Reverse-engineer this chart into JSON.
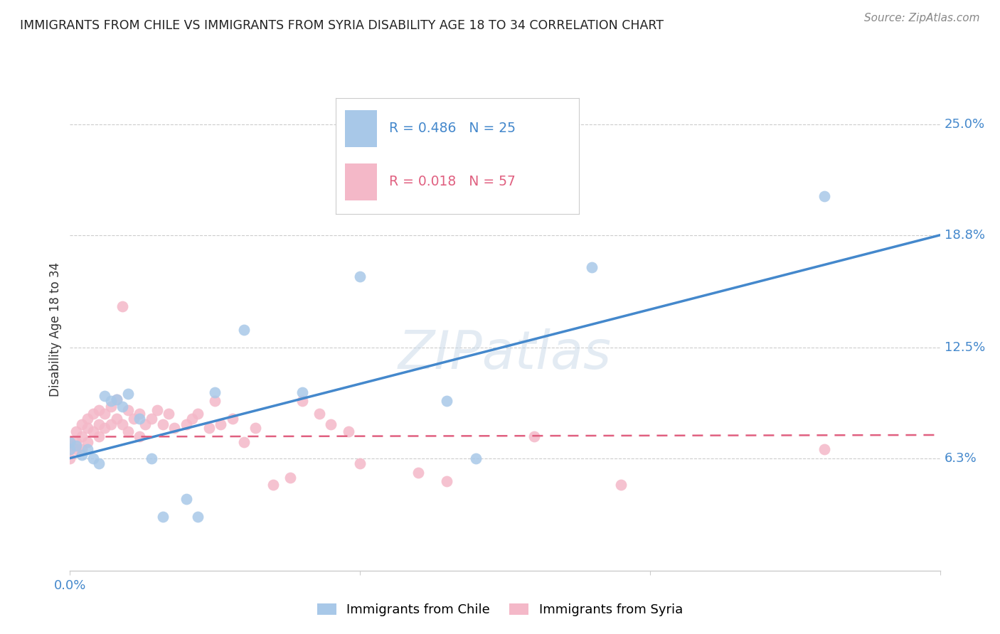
{
  "title": "IMMIGRANTS FROM CHILE VS IMMIGRANTS FROM SYRIA DISABILITY AGE 18 TO 34 CORRELATION CHART",
  "source": "Source: ZipAtlas.com",
  "ylabel": "Disability Age 18 to 34",
  "ytick_labels": [
    "6.3%",
    "12.5%",
    "18.8%",
    "25.0%"
  ],
  "ytick_values": [
    0.063,
    0.125,
    0.188,
    0.25
  ],
  "xlim": [
    0.0,
    0.15
  ],
  "ylim": [
    0.0,
    0.27
  ],
  "chile_color": "#a8c8e8",
  "syria_color": "#f4b8c8",
  "chile_line_color": "#4488cc",
  "syria_line_color": "#e06080",
  "chile_R": 0.486,
  "chile_N": 25,
  "syria_R": 0.018,
  "syria_N": 57,
  "watermark": "ZIPatlas",
  "chile_points_x": [
    0.0,
    0.0,
    0.001,
    0.002,
    0.003,
    0.004,
    0.005,
    0.006,
    0.007,
    0.008,
    0.009,
    0.01,
    0.012,
    0.014,
    0.016,
    0.02,
    0.022,
    0.025,
    0.03,
    0.04,
    0.05,
    0.065,
    0.07,
    0.09,
    0.13
  ],
  "chile_points_y": [
    0.072,
    0.068,
    0.07,
    0.065,
    0.068,
    0.063,
    0.06,
    0.098,
    0.095,
    0.096,
    0.092,
    0.099,
    0.085,
    0.063,
    0.03,
    0.04,
    0.03,
    0.1,
    0.135,
    0.1,
    0.165,
    0.095,
    0.063,
    0.17,
    0.21
  ],
  "syria_points_x": [
    0.0,
    0.0,
    0.0,
    0.001,
    0.001,
    0.001,
    0.002,
    0.002,
    0.002,
    0.003,
    0.003,
    0.003,
    0.004,
    0.004,
    0.005,
    0.005,
    0.005,
    0.006,
    0.006,
    0.007,
    0.007,
    0.008,
    0.008,
    0.009,
    0.009,
    0.01,
    0.01,
    0.011,
    0.012,
    0.012,
    0.013,
    0.014,
    0.015,
    0.016,
    0.017,
    0.018,
    0.02,
    0.021,
    0.022,
    0.024,
    0.025,
    0.026,
    0.028,
    0.03,
    0.032,
    0.035,
    0.038,
    0.04,
    0.043,
    0.045,
    0.048,
    0.05,
    0.06,
    0.065,
    0.08,
    0.095,
    0.13
  ],
  "syria_points_y": [
    0.072,
    0.068,
    0.063,
    0.078,
    0.072,
    0.068,
    0.082,
    0.075,
    0.068,
    0.085,
    0.08,
    0.072,
    0.088,
    0.078,
    0.09,
    0.082,
    0.075,
    0.088,
    0.08,
    0.092,
    0.082,
    0.096,
    0.085,
    0.148,
    0.082,
    0.09,
    0.078,
    0.085,
    0.088,
    0.075,
    0.082,
    0.085,
    0.09,
    0.082,
    0.088,
    0.08,
    0.082,
    0.085,
    0.088,
    0.08,
    0.095,
    0.082,
    0.085,
    0.072,
    0.08,
    0.048,
    0.052,
    0.095,
    0.088,
    0.082,
    0.078,
    0.06,
    0.055,
    0.05,
    0.075,
    0.048,
    0.068
  ],
  "background_color": "#ffffff",
  "grid_color": "#cccccc"
}
